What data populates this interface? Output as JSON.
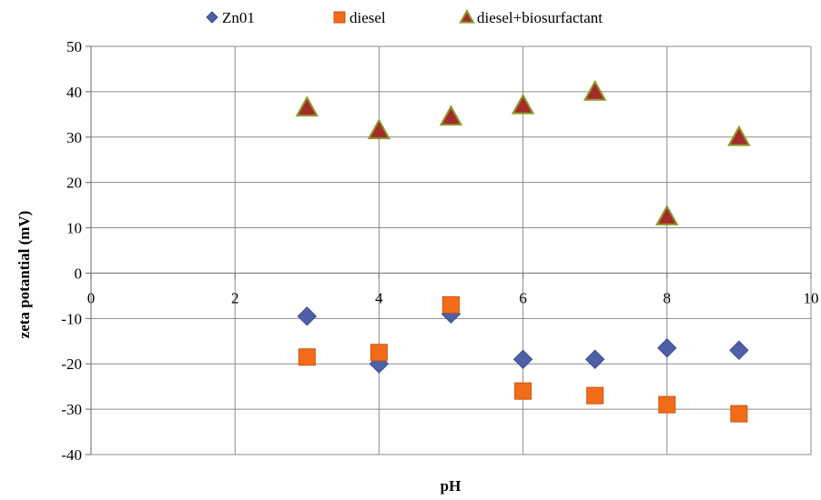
{
  "chart_data": {
    "type": "scatter",
    "title": "",
    "xlabel": "pH",
    "ylabel": "zeta potantial (mV)",
    "xlim": [
      0,
      10
    ],
    "ylim": [
      -40,
      50
    ],
    "xticks": [
      0,
      2,
      4,
      6,
      8,
      10
    ],
    "yticks": [
      -40,
      -30,
      -20,
      -10,
      0,
      10,
      20,
      30,
      40,
      50
    ],
    "grid": true,
    "legend": "top",
    "series": [
      {
        "name": "Zn01",
        "marker": "diamond",
        "color": "#4f5fa8",
        "x": [
          3,
          4,
          5,
          6,
          7,
          8,
          9
        ],
        "y": [
          -9.5,
          -20,
          -9,
          -19,
          -19,
          -16.5,
          -17
        ]
      },
      {
        "name": "diesel",
        "marker": "square",
        "color": "#f26c1a",
        "x": [
          3,
          4,
          5,
          6,
          7,
          8,
          9
        ],
        "y": [
          -18.5,
          -17.5,
          -7,
          -26,
          -27,
          -29,
          -31
        ]
      },
      {
        "name": "diesel+biosurfactant",
        "marker": "triangle",
        "color": "#a52a2a",
        "edge": "#8a9a2a",
        "x": [
          3,
          4,
          5,
          6,
          7,
          8,
          9
        ],
        "y": [
          36.5,
          31.5,
          34.5,
          37,
          40,
          12.5,
          30
        ]
      }
    ]
  }
}
